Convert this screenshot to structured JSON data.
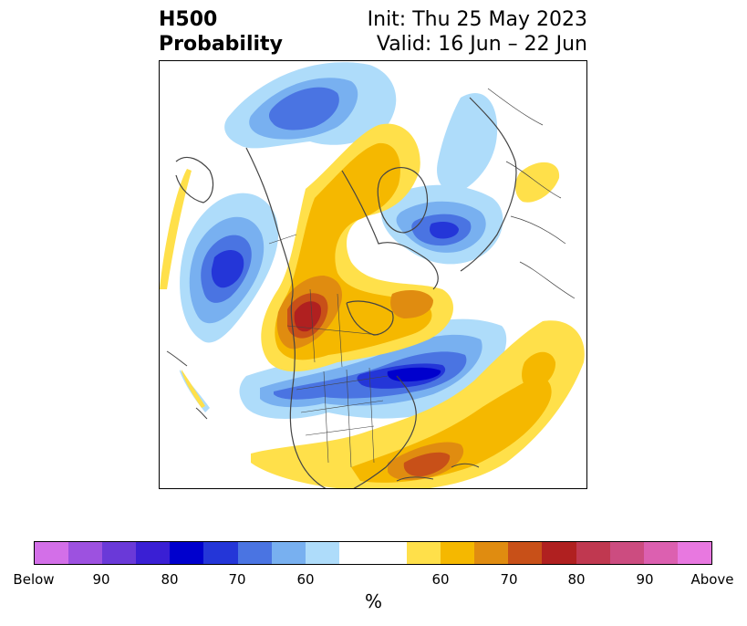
{
  "title": {
    "left_line1": "H500",
    "left_line2": "Probability",
    "right_line1": "Init: Thu 25 May 2023",
    "right_line2": "Valid: 16 Jun – 22 Jun"
  },
  "colorbar": {
    "unit": "%",
    "tick_labels": [
      "Below",
      "90",
      "80",
      "70",
      "60",
      "60",
      "70",
      "80",
      "90",
      "Above"
    ],
    "colors": [
      "#d36fe8",
      "#9d51e0",
      "#6a39d8",
      "#3a1fd4",
      "#0000cd",
      "#2436d8",
      "#4a74e2",
      "#78b0f0",
      "#aedcfa",
      "#ffffff",
      "#ffe04a",
      "#f5b800",
      "#e08c10",
      "#c85018",
      "#b02020",
      "#c03850",
      "#cc4c80",
      "#dc60b0",
      "#e878e0"
    ]
  },
  "map": {
    "projection": "polar-stereographic",
    "field": "H500 probability anomaly",
    "colors": {
      "blue_light": "#aedcfa",
      "blue_mid": "#78b0f0",
      "blue": "#4a74e2",
      "blue_deep": "#2436d8",
      "blue_max": "#0000cd",
      "yellow": "#ffe04a",
      "gold": "#f5b800",
      "orange": "#e08c10",
      "rust": "#c85018",
      "red": "#b02020",
      "coast": "#444444"
    }
  }
}
